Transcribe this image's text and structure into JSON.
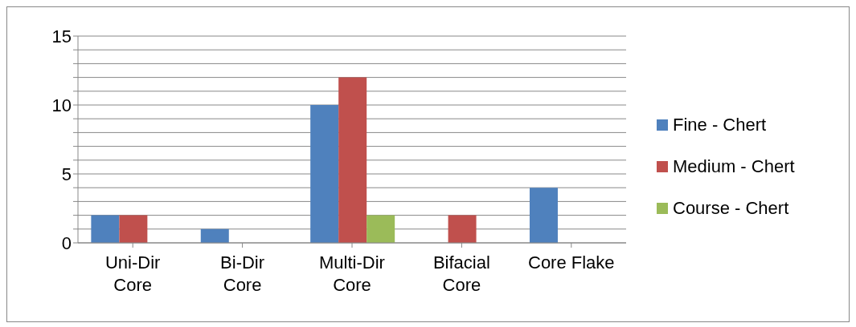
{
  "chart_data": {
    "type": "bar",
    "categories": [
      "Uni-Dir Core",
      "Bi-Dir Core",
      "Multi-Dir Core",
      "Bifacial Core",
      "Core Flake"
    ],
    "series": [
      {
        "name": "Fine - Chert",
        "color": "#4f81bd",
        "values": [
          2,
          1,
          10,
          0,
          4
        ]
      },
      {
        "name": "Medium - Chert",
        "color": "#c0504d",
        "values": [
          2,
          0,
          12,
          2,
          0
        ]
      },
      {
        "name": "Course - Chert",
        "color": "#9bbb59",
        "values": [
          0,
          0,
          2,
          0,
          0
        ]
      }
    ],
    "ylim": [
      0,
      15
    ],
    "yticks": [
      0,
      {
        "value": 1,
        "label": null
      },
      {
        "value": 2,
        "label": null
      },
      {
        "value": 3,
        "label": null
      },
      {
        "value": 4,
        "label": null
      },
      5,
      {
        "value": 6,
        "label": null
      },
      {
        "value": 7,
        "label": null
      },
      {
        "value": 8,
        "label": null
      },
      {
        "value": 9,
        "label": null
      },
      10,
      {
        "value": 11,
        "label": null
      },
      {
        "value": 12,
        "label": null
      },
      {
        "value": 13,
        "label": null
      },
      {
        "value": 14,
        "label": null
      },
      15
    ],
    "grid": "y",
    "legend": "right"
  }
}
